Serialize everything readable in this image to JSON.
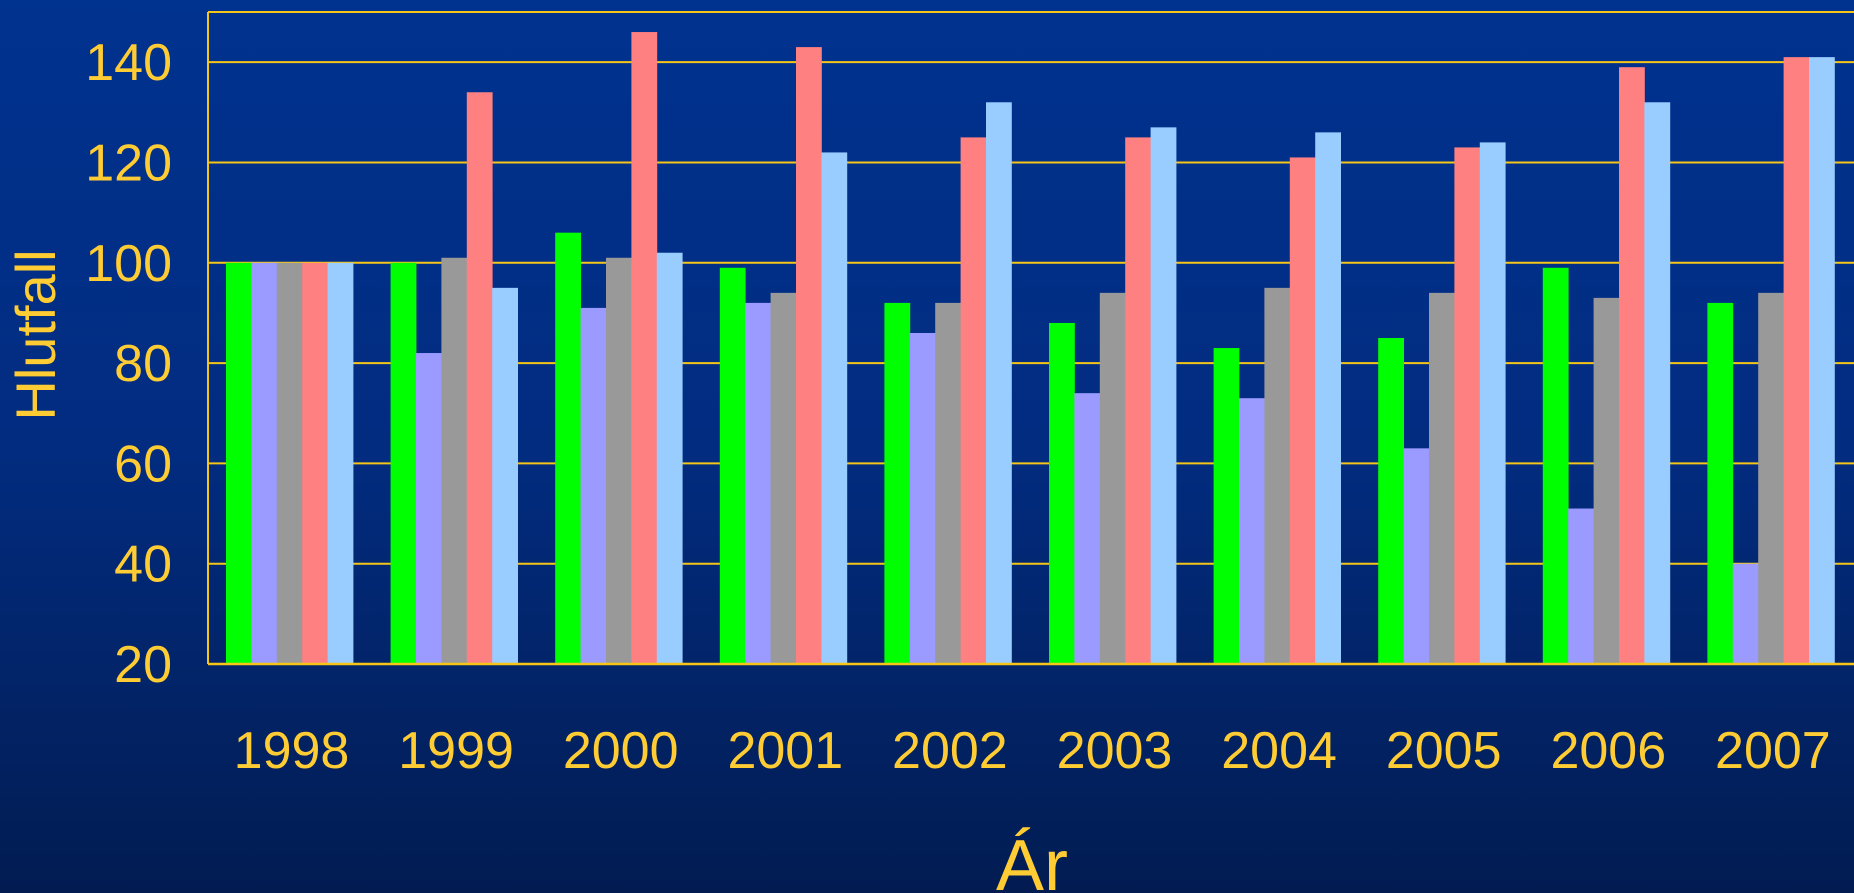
{
  "chart_data": {
    "type": "bar",
    "title": "",
    "xlabel": "Ár",
    "ylabel": "Hlutfall",
    "ylim": [
      20,
      150
    ],
    "yticks": [
      20,
      40,
      60,
      80,
      100,
      120,
      140
    ],
    "grid": true,
    "legend": "none",
    "colors": {
      "gridline": "#f5c518",
      "text": "#ffcc33",
      "series": [
        "#00ff00",
        "#9b9bff",
        "#999999",
        "#ff8080",
        "#99ccff"
      ]
    },
    "categories": [
      "1998",
      "1999",
      "2000",
      "2001",
      "2002",
      "2003",
      "2004",
      "2005",
      "2006",
      "2007"
    ],
    "series": [
      {
        "values": [
          100,
          100,
          106,
          99,
          92,
          88,
          83,
          85,
          99,
          92
        ]
      },
      {
        "values": [
          100,
          82,
          91,
          92,
          86,
          74,
          73,
          63,
          51,
          40
        ]
      },
      {
        "values": [
          100,
          101,
          101,
          94,
          92,
          94,
          95,
          94,
          93,
          94
        ]
      },
      {
        "values": [
          100,
          134,
          146,
          143,
          125,
          125,
          121,
          123,
          139,
          141
        ]
      },
      {
        "values": [
          100,
          95,
          102,
          122,
          132,
          127,
          126,
          124,
          132,
          141
        ]
      }
    ]
  }
}
